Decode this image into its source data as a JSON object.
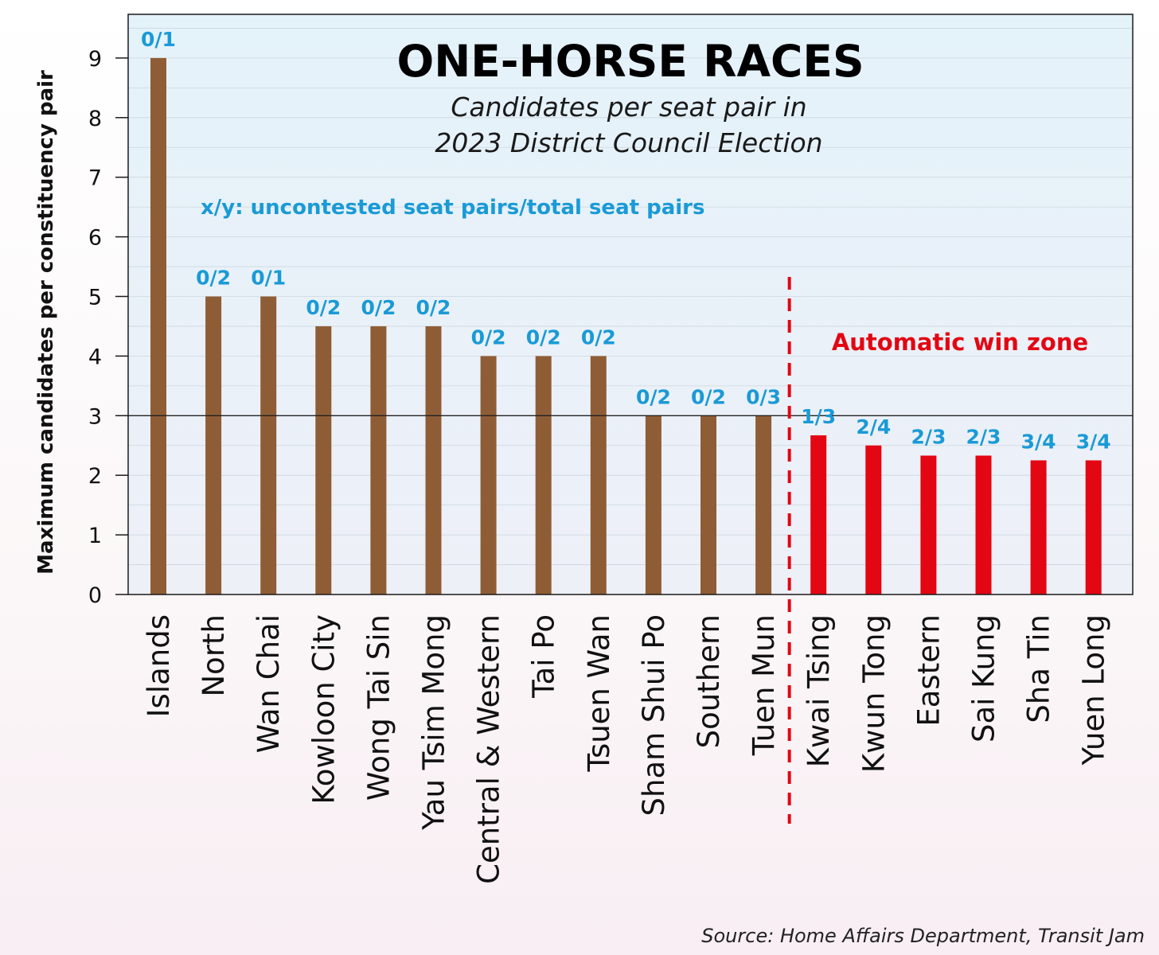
{
  "colors": {
    "normal_bar": "#8f5d35",
    "auto_win_bar": "#e30613",
    "label_blue": "#1a9ad6",
    "plot_bg_top": "#e4f2fa",
    "plot_bg_bottom": "#eef0f7",
    "zone_line": "#e30613"
  },
  "chart_data": {
    "type": "bar",
    "title": "ONE-HORSE RACES",
    "subtitle_lines": [
      "Candidates per seat pair in",
      "2023 District Council Election"
    ],
    "note": "x/y: uncontested seat pairs/total seat pairs",
    "zone_label": "Automatic win zone",
    "ylabel": "Maximum candidates per constituency pair",
    "xlabel": "",
    "ylim": [
      0,
      9.7
    ],
    "yticks": [
      0,
      1,
      2,
      3,
      4,
      5,
      6,
      7,
      8,
      9
    ],
    "grid": true,
    "reference_line_y": 3,
    "zone_divider_after_category": "Tuen Mun",
    "categories": [
      "Islands",
      "North",
      "Wan Chai",
      "Kowloon City",
      "Wong Tai Sin",
      "Yau Tsim Mong",
      "Central & Western",
      "Tai Po",
      "Tsuen Wan",
      "Sham Shui Po",
      "Southern",
      "Tuen Mun",
      "Kwai Tsing",
      "Kwun Tong",
      "Eastern",
      "Sai Kung",
      "Sha Tin",
      "Yuen Long"
    ],
    "values": [
      9,
      5,
      5,
      4.5,
      4.5,
      4.5,
      4,
      4,
      4,
      3,
      3,
      3,
      2.67,
      2.5,
      2.33,
      2.33,
      2.25,
      2.25
    ],
    "data_labels": [
      "0/1",
      "0/2",
      "0/1",
      "0/2",
      "0/2",
      "0/2",
      "0/2",
      "0/2",
      "0/2",
      "0/2",
      "0/2",
      "0/3",
      "1/3",
      "2/4",
      "2/3",
      "2/3",
      "3/4",
      "3/4"
    ],
    "automatic_win": [
      false,
      false,
      false,
      false,
      false,
      false,
      false,
      false,
      false,
      false,
      false,
      false,
      true,
      true,
      true,
      true,
      true,
      true
    ]
  },
  "source": "Source: Home Affairs Department, Transit Jam"
}
